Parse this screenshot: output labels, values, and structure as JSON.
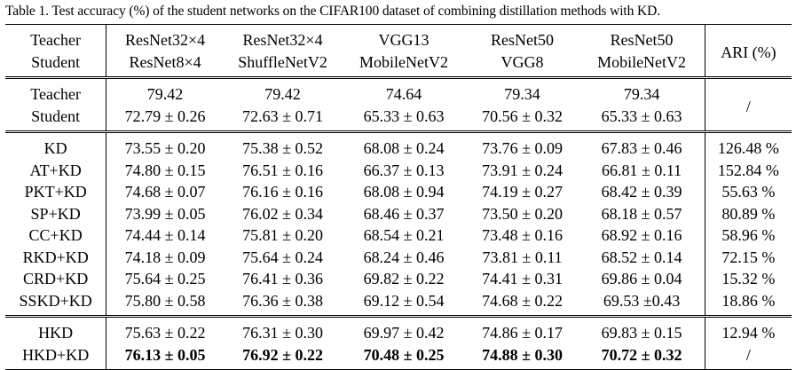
{
  "caption": "Table 1. Test accuracy (%) of the student networks on the CIFAR100 dataset of combining distillation methods with KD.",
  "header": {
    "teacher_label": "Teacher",
    "student_label": "Student",
    "ari_label": "ARI (%)",
    "columns": [
      {
        "teacher": "ResNet32×4",
        "student": "ResNet8×4"
      },
      {
        "teacher": "ResNet32×4",
        "student": "ShuffleNetV2"
      },
      {
        "teacher": "VGG13",
        "student": "MobileNetV2"
      },
      {
        "teacher": "ResNet50",
        "student": "VGG8"
      },
      {
        "teacher": "ResNet50",
        "student": "MobileNetV2"
      }
    ]
  },
  "baselines": {
    "teacher": {
      "label": "Teacher",
      "values": [
        "79.42",
        "79.42",
        "74.64",
        "79.34",
        "79.34"
      ]
    },
    "student": {
      "label": "Student",
      "values": [
        "72.79 ± 0.26",
        "72.63 ± 0.71",
        "65.33 ± 0.63",
        "70.56 ± 0.32",
        "65.33 ± 0.63"
      ]
    },
    "ari": "/"
  },
  "methods": [
    {
      "name": "KD",
      "values": [
        "73.55 ± 0.20",
        "75.38 ± 0.52",
        "68.08 ± 0.24",
        "73.76 ± 0.09",
        "67.83 ± 0.46"
      ],
      "ari": "126.48 %"
    },
    {
      "name": "AT+KD",
      "values": [
        "74.80 ± 0.15",
        "76.51 ± 0.16",
        "66.37 ± 0.13",
        "73.91 ± 0.24",
        "66.81 ± 0.11"
      ],
      "ari": "152.84 %"
    },
    {
      "name": "PKT+KD",
      "values": [
        "74.68 ± 0.07",
        "76.16 ± 0.16",
        "68.08 ± 0.94",
        "74.19 ± 0.27",
        "68.42 ± 0.39"
      ],
      "ari": "55.63 %"
    },
    {
      "name": "SP+KD",
      "values": [
        "73.99 ± 0.05",
        "76.02 ± 0.34",
        "68.46 ± 0.37",
        "73.50 ± 0.20",
        "68.18 ± 0.57"
      ],
      "ari": "80.89 %"
    },
    {
      "name": "CC+KD",
      "values": [
        "74.44 ± 0.14",
        "75.81 ± 0.20",
        "68.54 ± 0.21",
        "73.48 ± 0.16",
        "68.92 ± 0.16"
      ],
      "ari": "58.96 %"
    },
    {
      "name": "RKD+KD",
      "values": [
        "74.18 ± 0.09",
        "75.64 ± 0.24",
        "68.24 ± 0.46",
        "73.81 ± 0.11",
        "68.52 ± 0.14"
      ],
      "ari": "72.15 %"
    },
    {
      "name": "CRD+KD",
      "values": [
        "75.64 ± 0.25",
        "76.41 ± 0.36",
        "69.82 ± 0.22",
        "74.41 ± 0.31",
        "69.86 ± 0.04"
      ],
      "ari": "15.32 %"
    },
    {
      "name": "SSKD+KD",
      "values": [
        "75.80 ± 0.58",
        "76.36 ± 0.38",
        "69.12 ± 0.54",
        "74.68 ± 0.22",
        "69.53 ±0.43"
      ],
      "ari": "18.86 %"
    }
  ],
  "ours": [
    {
      "name": "HKD",
      "values": [
        "75.63 ± 0.22",
        "76.31 ± 0.30",
        "69.97 ± 0.42",
        "74.86 ± 0.17",
        "69.83 ± 0.15"
      ],
      "ari": "12.94 %"
    },
    {
      "name": "HKD+KD",
      "values": [
        "76.13 ± 0.05",
        "76.92 ± 0.22",
        "70.48 ± 0.25",
        "74.88 ± 0.30",
        "70.72 ± 0.32"
      ],
      "ari": "/"
    }
  ]
}
